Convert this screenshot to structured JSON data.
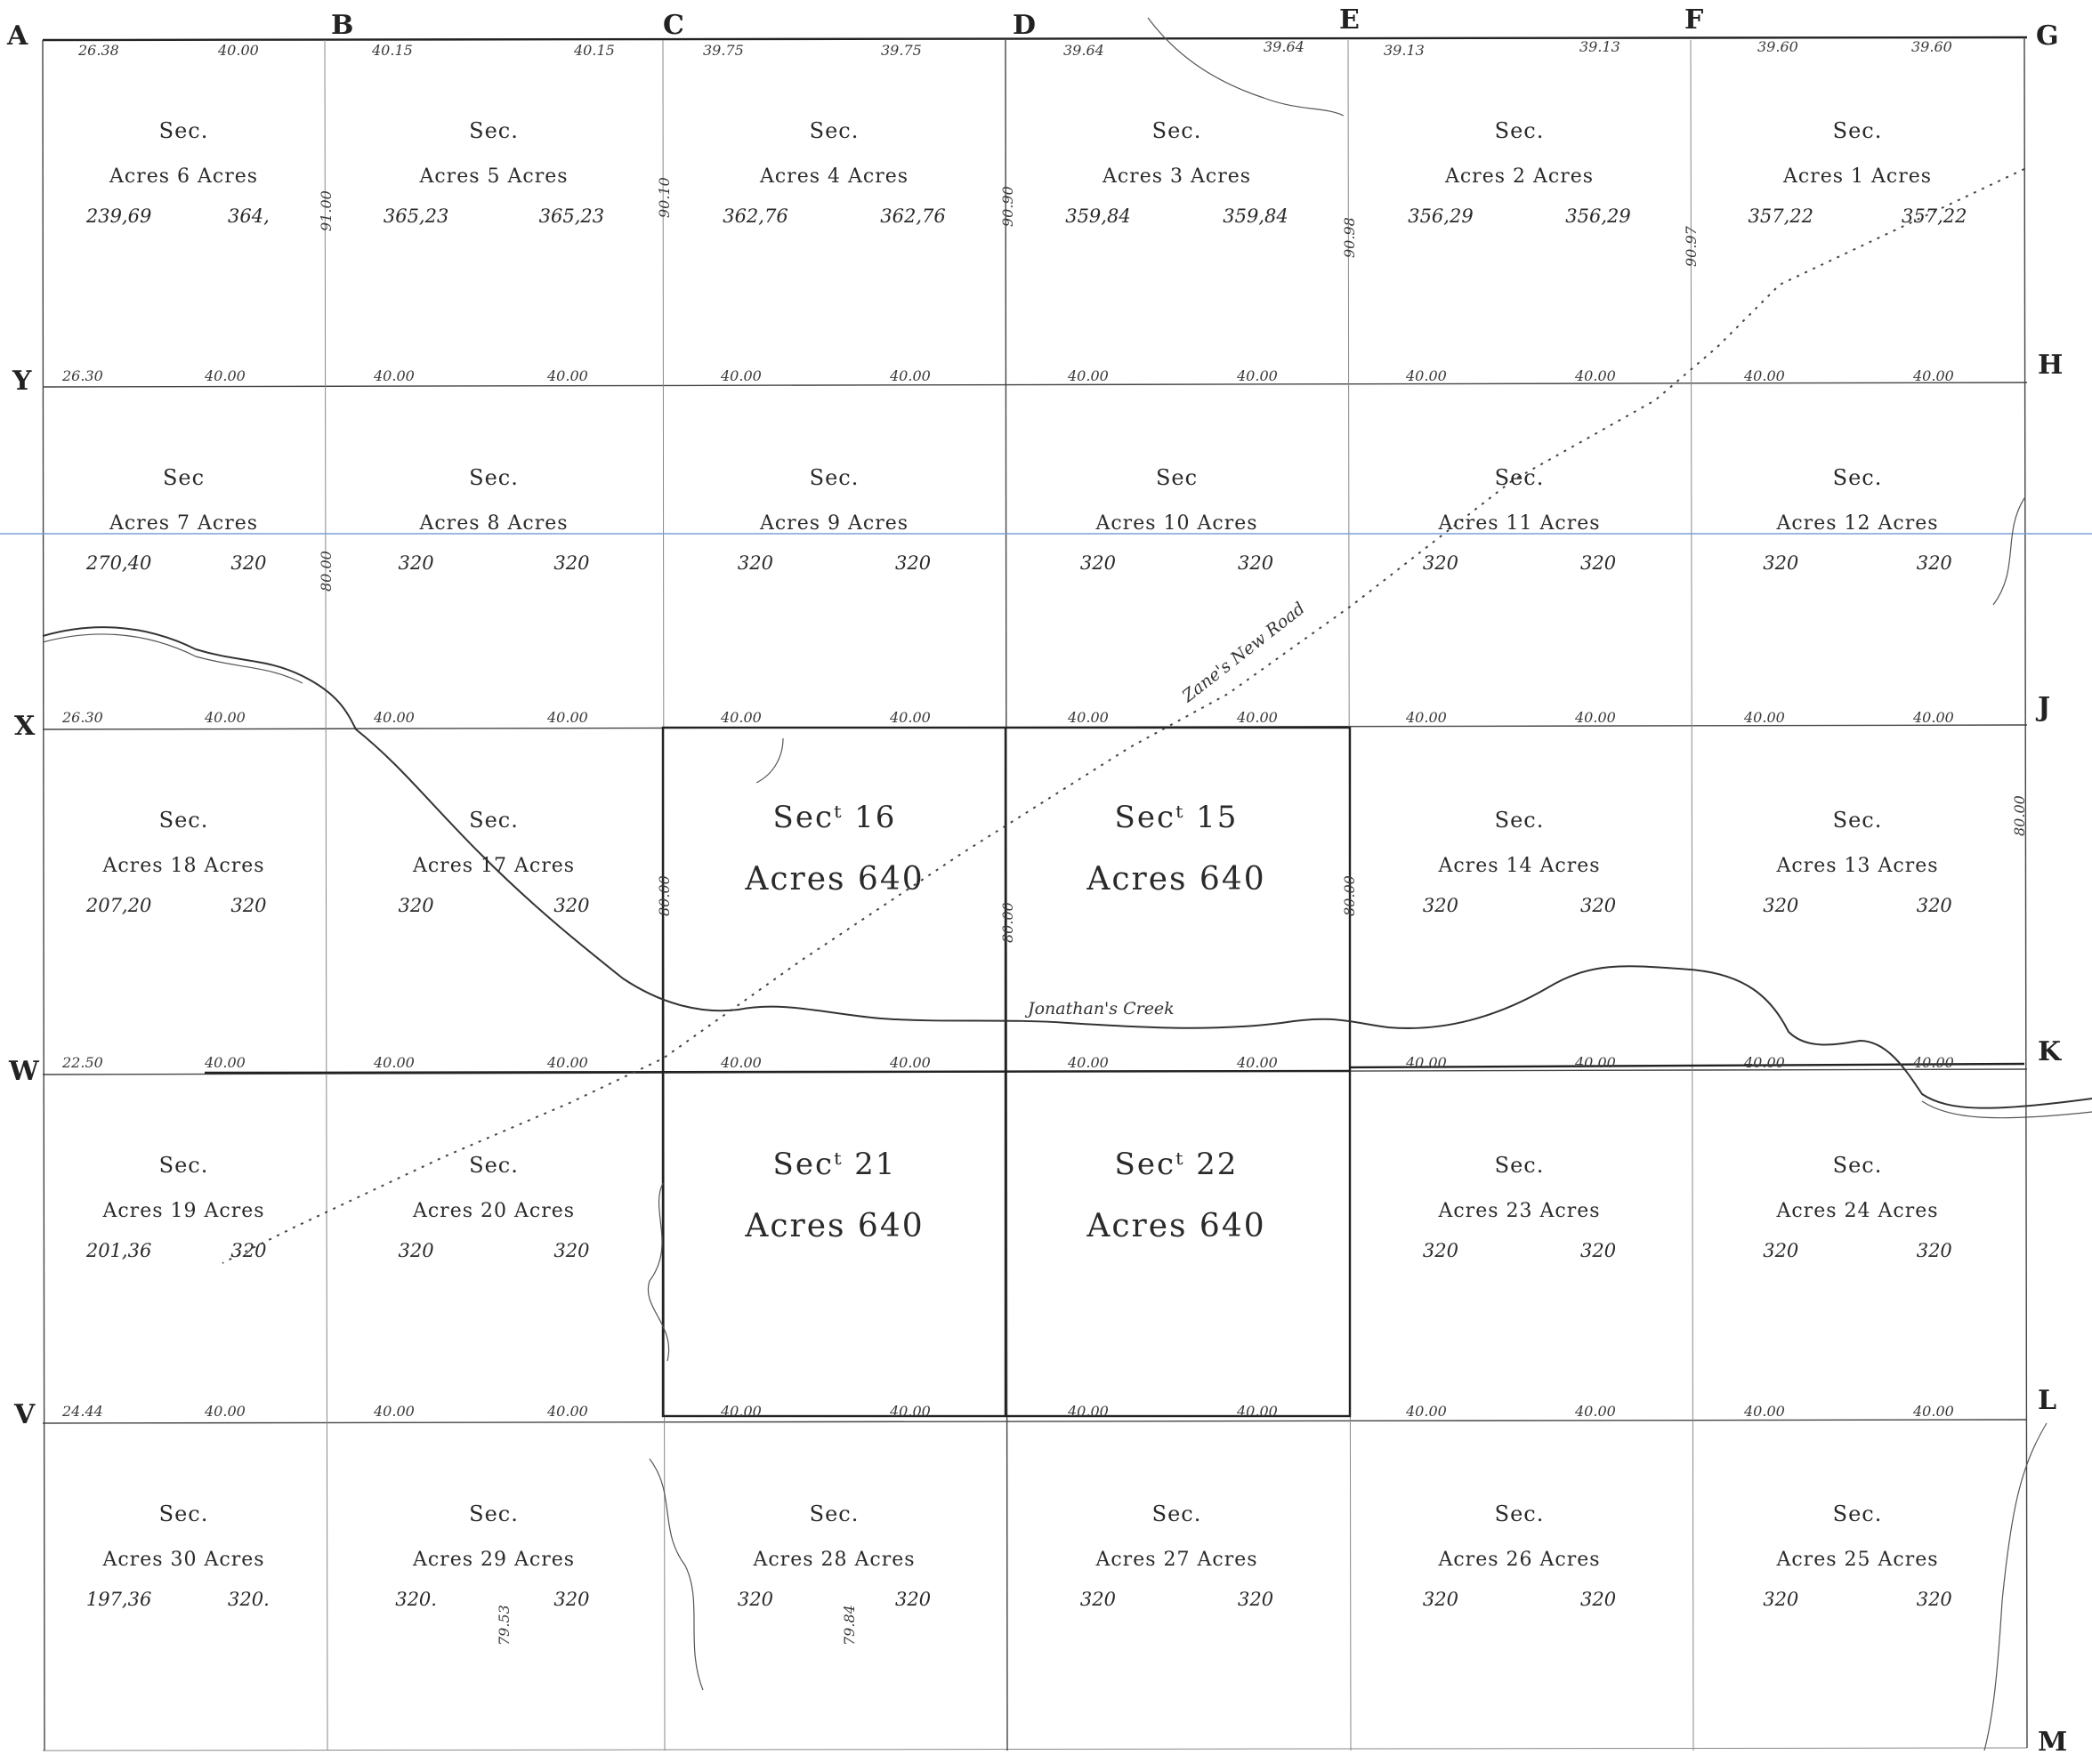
{
  "corners": {
    "top": [
      "A",
      "B",
      "C",
      "D",
      "E",
      "F",
      "G"
    ],
    "right": [
      "H",
      "J",
      "K",
      "L",
      "M"
    ],
    "left": [
      "Y",
      "X",
      "W",
      "V"
    ]
  },
  "top_chains": [
    "26.38",
    "40.00",
    "40.15",
    "40.15",
    "39.75",
    "39.75",
    "39.64",
    "39.64",
    "39.13",
    "39.13",
    "39.60",
    "39.60"
  ],
  "sections": [
    {
      "id": "s6",
      "sec": "Sec.",
      "label": "Acres 6 Acres",
      "a1": "239,69",
      "a2": "364,"
    },
    {
      "id": "s5",
      "sec": "Sec.",
      "label": "Acres 5 Acres",
      "a1": "365,23",
      "a2": "365,23"
    },
    {
      "id": "s4",
      "sec": "Sec.",
      "label": "Acres 4 Acres",
      "a1": "362,76",
      "a2": "362,76"
    },
    {
      "id": "s3",
      "sec": "Sec.",
      "label": "Acres 3 Acres",
      "a1": "359,84",
      "a2": "359,84"
    },
    {
      "id": "s2",
      "sec": "Sec.",
      "label": "Acres 2 Acres",
      "a1": "356,29",
      "a2": "356,29"
    },
    {
      "id": "s1",
      "sec": "Sec.",
      "label": "Acres 1 Acres",
      "a1": "357,22",
      "a2": "357,22"
    },
    {
      "id": "s7",
      "sec": "Sec",
      "label": "Acres 7 Acres",
      "a1": "270,40",
      "a2": "320"
    },
    {
      "id": "s8",
      "sec": "Sec.",
      "label": "Acres 8 Acres",
      "a1": "320",
      "a2": "320"
    },
    {
      "id": "s9",
      "sec": "Sec.",
      "label": "Acres 9 Acres",
      "a1": "320",
      "a2": "320"
    },
    {
      "id": "s10",
      "sec": "Sec",
      "label": "Acres 10 Acres",
      "a1": "320",
      "a2": "320"
    },
    {
      "id": "s11",
      "sec": "Sec.",
      "label": "Acres 11 Acres",
      "a1": "320",
      "a2": "320"
    },
    {
      "id": "s12",
      "sec": "Sec.",
      "label": "Acres 12 Acres",
      "a1": "320",
      "a2": "320"
    },
    {
      "id": "s18",
      "sec": "Sec.",
      "label": "Acres 18 Acres",
      "a1": "207,20",
      "a2": "320"
    },
    {
      "id": "s17",
      "sec": "Sec.",
      "label": "Acres 17 Acres",
      "a1": "320",
      "a2": "320"
    },
    {
      "id": "s14",
      "sec": "Sec.",
      "label": "Acres 14 Acres",
      "a1": "320",
      "a2": "320"
    },
    {
      "id": "s13",
      "sec": "Sec.",
      "label": "Acres 13 Acres",
      "a1": "320",
      "a2": "320"
    },
    {
      "id": "s19",
      "sec": "Sec.",
      "label": "Acres 19 Acres",
      "a1": "201,36",
      "a2": "320"
    },
    {
      "id": "s20",
      "sec": "Sec.",
      "label": "Acres 20 Acres",
      "a1": "320",
      "a2": "320"
    },
    {
      "id": "s23",
      "sec": "Sec.",
      "label": "Acres 23 Acres",
      "a1": "320",
      "a2": "320"
    },
    {
      "id": "s24",
      "sec": "Sec.",
      "label": "Acres 24 Acres",
      "a1": "320",
      "a2": "320"
    },
    {
      "id": "s30",
      "sec": "Sec.",
      "label": "Acres 30 Acres",
      "a1": "197,36",
      "a2": "320."
    },
    {
      "id": "s29",
      "sec": "Sec.",
      "label": "Acres 29 Acres",
      "a1": "320.",
      "a2": "320"
    },
    {
      "id": "s28",
      "sec": "Sec.",
      "label": "Acres 28 Acres",
      "a1": "320",
      "a2": "320"
    },
    {
      "id": "s27",
      "sec": "Sec.",
      "label": "Acres 27 Acres",
      "a1": "320",
      "a2": "320"
    },
    {
      "id": "s26",
      "sec": "Sec.",
      "label": "Acres 26 Acres",
      "a1": "320",
      "a2": "320"
    },
    {
      "id": "s25",
      "sec": "Sec.",
      "label": "Acres 25 Acres",
      "a1": "320",
      "a2": "320"
    }
  ],
  "big_sections": [
    {
      "id": "s16",
      "sec": "Secᵗ 16",
      "acres": "Acres 640"
    },
    {
      "id": "s15",
      "sec": "Secᵗ 15",
      "acres": "Acres 640"
    },
    {
      "id": "s21",
      "sec": "Secᵗ 21",
      "acres": "Acres 640"
    },
    {
      "id": "s22",
      "sec": "Secᵗ 22",
      "acres": "Acres 640"
    }
  ],
  "row_chains": {
    "y": [
      "26.30",
      "40.00",
      "40.00",
      "40.00",
      "40.00",
      "40.00",
      "40.00",
      "40.00",
      "40.00",
      "40.00",
      "40.00",
      "40.00"
    ],
    "x": [
      "26.30",
      "40.00",
      "40.00",
      "40.00",
      "40.00",
      "40.00",
      "40.00",
      "40.00",
      "40.00",
      "40.00",
      "40.00",
      "40.00"
    ],
    "w": [
      "22.50",
      "40.00",
      "40.00",
      "40.00",
      "40.00",
      "40.00",
      "40.00",
      "40.00",
      "40.00",
      "40.00",
      "40.00",
      "40.00"
    ],
    "v": [
      "24.44",
      "40.00",
      "40.00",
      "40.00",
      "40.00",
      "40.00",
      "40.00",
      "40.00",
      "40.00",
      "40.00",
      "40.00",
      "40.00"
    ]
  },
  "vertical_chains": [
    "91.00",
    "90.10",
    "90.90",
    "90.98",
    "90.97",
    "80.00",
    "80.00",
    "80.00",
    "80.00",
    "80.00",
    "79.53",
    "79.84"
  ],
  "features": {
    "road": "Zane's New Road",
    "creek": "Jonathan's Creek"
  }
}
